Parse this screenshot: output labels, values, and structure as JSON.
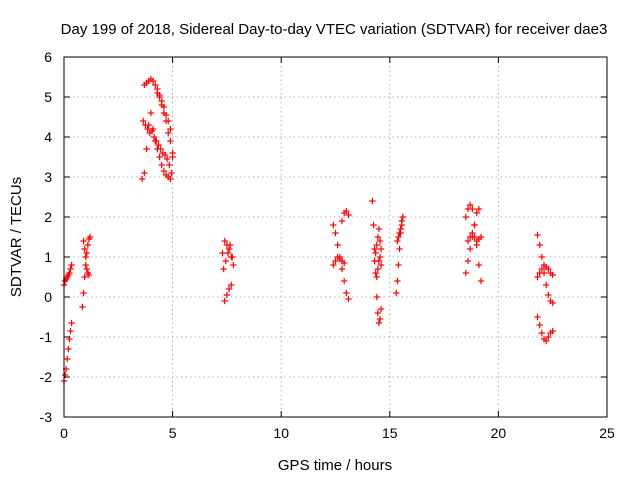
{
  "chart_data": {
    "type": "scatter",
    "title": "Day 199 of 2018, Sidereal Day-to-day VTEC variation (SDTVAR) for receiver dae3",
    "xlabel": "GPS time / hours",
    "ylabel": "SDTVAR / TECUs",
    "xlim": [
      0,
      25
    ],
    "ylim": [
      -3,
      6
    ],
    "xticks": [
      0,
      5,
      10,
      15,
      20,
      25
    ],
    "yticks": [
      -3,
      -2,
      -1,
      0,
      1,
      2,
      3,
      4,
      5,
      6
    ],
    "grid": true,
    "marker": "plus",
    "color": "#ff0000",
    "series": [
      {
        "name": "SDTVAR",
        "segments": [
          {
            "x": [
              0.0,
              0.05,
              0.1,
              0.15,
              0.2,
              0.25,
              0.3,
              0.35
            ],
            "y": [
              -2.1,
              -1.95,
              -1.8,
              -1.55,
              -1.3,
              -1.05,
              -0.85,
              -0.65
            ]
          },
          {
            "x": [
              0.0,
              0.05,
              0.1,
              0.15,
              0.2,
              0.25,
              0.3,
              0.35
            ],
            "y": [
              0.3,
              0.4,
              0.45,
              0.5,
              0.55,
              0.6,
              0.7,
              0.8
            ]
          },
          {
            "x": [
              0.85,
              0.9,
              0.95,
              1.0,
              1.05,
              1.1,
              1.15,
              1.2
            ],
            "y": [
              -0.25,
              0.1,
              0.5,
              0.8,
              1.1,
              1.3,
              1.45,
              1.5
            ]
          },
          {
            "x": [
              0.9,
              0.95,
              1.0,
              1.05,
              1.1,
              1.15
            ],
            "y": [
              1.4,
              1.2,
              1.0,
              0.7,
              0.6,
              0.55
            ]
          },
          {
            "x": [
              3.6,
              3.7,
              3.8,
              3.9,
              4.0,
              4.1,
              4.2,
              4.3,
              4.4,
              4.5,
              4.6,
              4.7,
              4.8,
              4.9,
              5.0
            ],
            "y": [
              2.95,
              3.1,
              3.7,
              4.3,
              4.6,
              4.2,
              3.9,
              3.7,
              3.5,
              3.3,
              3.15,
              3.05,
              3.0,
              2.95,
              3.5
            ]
          },
          {
            "x": [
              3.7,
              3.8,
              3.9,
              4.0,
              4.1,
              4.2,
              4.3,
              4.4,
              4.5,
              4.6,
              4.7,
              4.8,
              4.9,
              5.0
            ],
            "y": [
              5.3,
              5.35,
              5.4,
              5.45,
              5.4,
              5.3,
              5.1,
              5.0,
              4.8,
              4.6,
              4.4,
              4.1,
              3.9,
              3.6
            ]
          },
          {
            "x": [
              3.65,
              3.75,
              3.85,
              3.95,
              4.05,
              4.15,
              4.25,
              4.35,
              4.45,
              4.55,
              4.65,
              4.75,
              4.85,
              4.95
            ],
            "y": [
              4.4,
              4.3,
              4.2,
              4.1,
              4.15,
              4.0,
              3.9,
              3.8,
              3.7,
              3.6,
              3.55,
              3.45,
              3.3,
              3.1
            ]
          },
          {
            "x": [
              4.3,
              4.4,
              4.5,
              4.6,
              4.7,
              4.8,
              4.9
            ],
            "y": [
              5.2,
              5.05,
              4.9,
              4.75,
              4.55,
              4.4,
              4.2
            ]
          },
          {
            "x": [
              7.3,
              7.4,
              7.5,
              7.6,
              7.7,
              7.8
            ],
            "y": [
              1.1,
              1.4,
              1.3,
              1.2,
              1.0,
              0.8
            ]
          },
          {
            "x": [
              7.35,
              7.45,
              7.55,
              7.65,
              7.75
            ],
            "y": [
              0.7,
              0.9,
              1.1,
              1.3,
              1.0
            ]
          },
          {
            "x": [
              7.4,
              7.5,
              7.6,
              7.7
            ],
            "y": [
              -0.1,
              0.05,
              0.2,
              0.3
            ]
          },
          {
            "x": [
              12.4,
              12.5,
              12.6,
              12.7,
              12.8,
              12.9,
              13.0,
              13.1
            ],
            "y": [
              1.8,
              1.6,
              1.3,
              1.0,
              0.7,
              0.4,
              0.1,
              -0.05
            ]
          },
          {
            "x": [
              12.4,
              12.5,
              12.6,
              12.7,
              12.8,
              12.9
            ],
            "y": [
              0.8,
              0.9,
              1.0,
              0.95,
              0.9,
              0.85
            ]
          },
          {
            "x": [
              12.8,
              12.9,
              13.0,
              13.1
            ],
            "y": [
              1.9,
              2.1,
              2.15,
              2.05
            ]
          },
          {
            "x": [
              14.2,
              14.25,
              14.3,
              14.35,
              14.4,
              14.45,
              14.5,
              14.55,
              14.6
            ],
            "y": [
              2.4,
              1.8,
              1.2,
              0.6,
              0.0,
              -0.4,
              -0.65,
              -0.55,
              -0.3
            ]
          },
          {
            "x": [
              14.3,
              14.35,
              14.4,
              14.45,
              14.5,
              14.55,
              14.6
            ],
            "y": [
              0.9,
              1.1,
              1.3,
              1.5,
              1.7,
              1.4,
              1.2
            ]
          },
          {
            "x": [
              14.4,
              14.45,
              14.5,
              14.55,
              14.6
            ],
            "y": [
              0.5,
              0.7,
              0.9,
              1.0,
              0.8
            ]
          },
          {
            "x": [
              15.3,
              15.35,
              15.4,
              15.45,
              15.5,
              15.55,
              15.6
            ],
            "y": [
              0.1,
              0.4,
              0.8,
              1.2,
              1.6,
              1.9,
              2.0
            ]
          },
          {
            "x": [
              15.35,
              15.4,
              15.45,
              15.5,
              15.55
            ],
            "y": [
              1.4,
              1.5,
              1.6,
              1.7,
              1.8
            ]
          },
          {
            "x": [
              18.5,
              18.6,
              18.7,
              18.8,
              18.9,
              19.0,
              19.1,
              19.2
            ],
            "y": [
              0.6,
              0.9,
              1.2,
              1.5,
              1.8,
              2.1,
              2.2,
              1.5
            ]
          },
          {
            "x": [
              18.5,
              18.6,
              18.7,
              18.8,
              18.9,
              19.0,
              19.1,
              19.2
            ],
            "y": [
              2.0,
              2.2,
              2.3,
              2.2,
              1.8,
              1.3,
              0.8,
              0.4
            ]
          },
          {
            "x": [
              18.6,
              18.7,
              18.8,
              18.9,
              19.0,
              19.1
            ],
            "y": [
              1.4,
              1.5,
              1.6,
              1.5,
              1.4,
              1.45
            ]
          },
          {
            "x": [
              21.8,
              21.9,
              22.0,
              22.1,
              22.2,
              22.3,
              22.4,
              22.5
            ],
            "y": [
              1.55,
              1.3,
              1.0,
              0.6,
              0.3,
              0.05,
              -0.1,
              -0.15
            ]
          },
          {
            "x": [
              21.8,
              21.9,
              22.0,
              22.1,
              22.2,
              22.3,
              22.4,
              22.5
            ],
            "y": [
              0.5,
              0.6,
              0.7,
              0.8,
              0.75,
              0.7,
              0.6,
              0.55
            ]
          },
          {
            "x": [
              21.8,
              21.9,
              22.0,
              22.1,
              22.2,
              22.3,
              22.4,
              22.5
            ],
            "y": [
              -0.5,
              -0.7,
              -0.9,
              -1.05,
              -1.1,
              -1.0,
              -0.9,
              -0.85
            ]
          }
        ]
      }
    ]
  }
}
